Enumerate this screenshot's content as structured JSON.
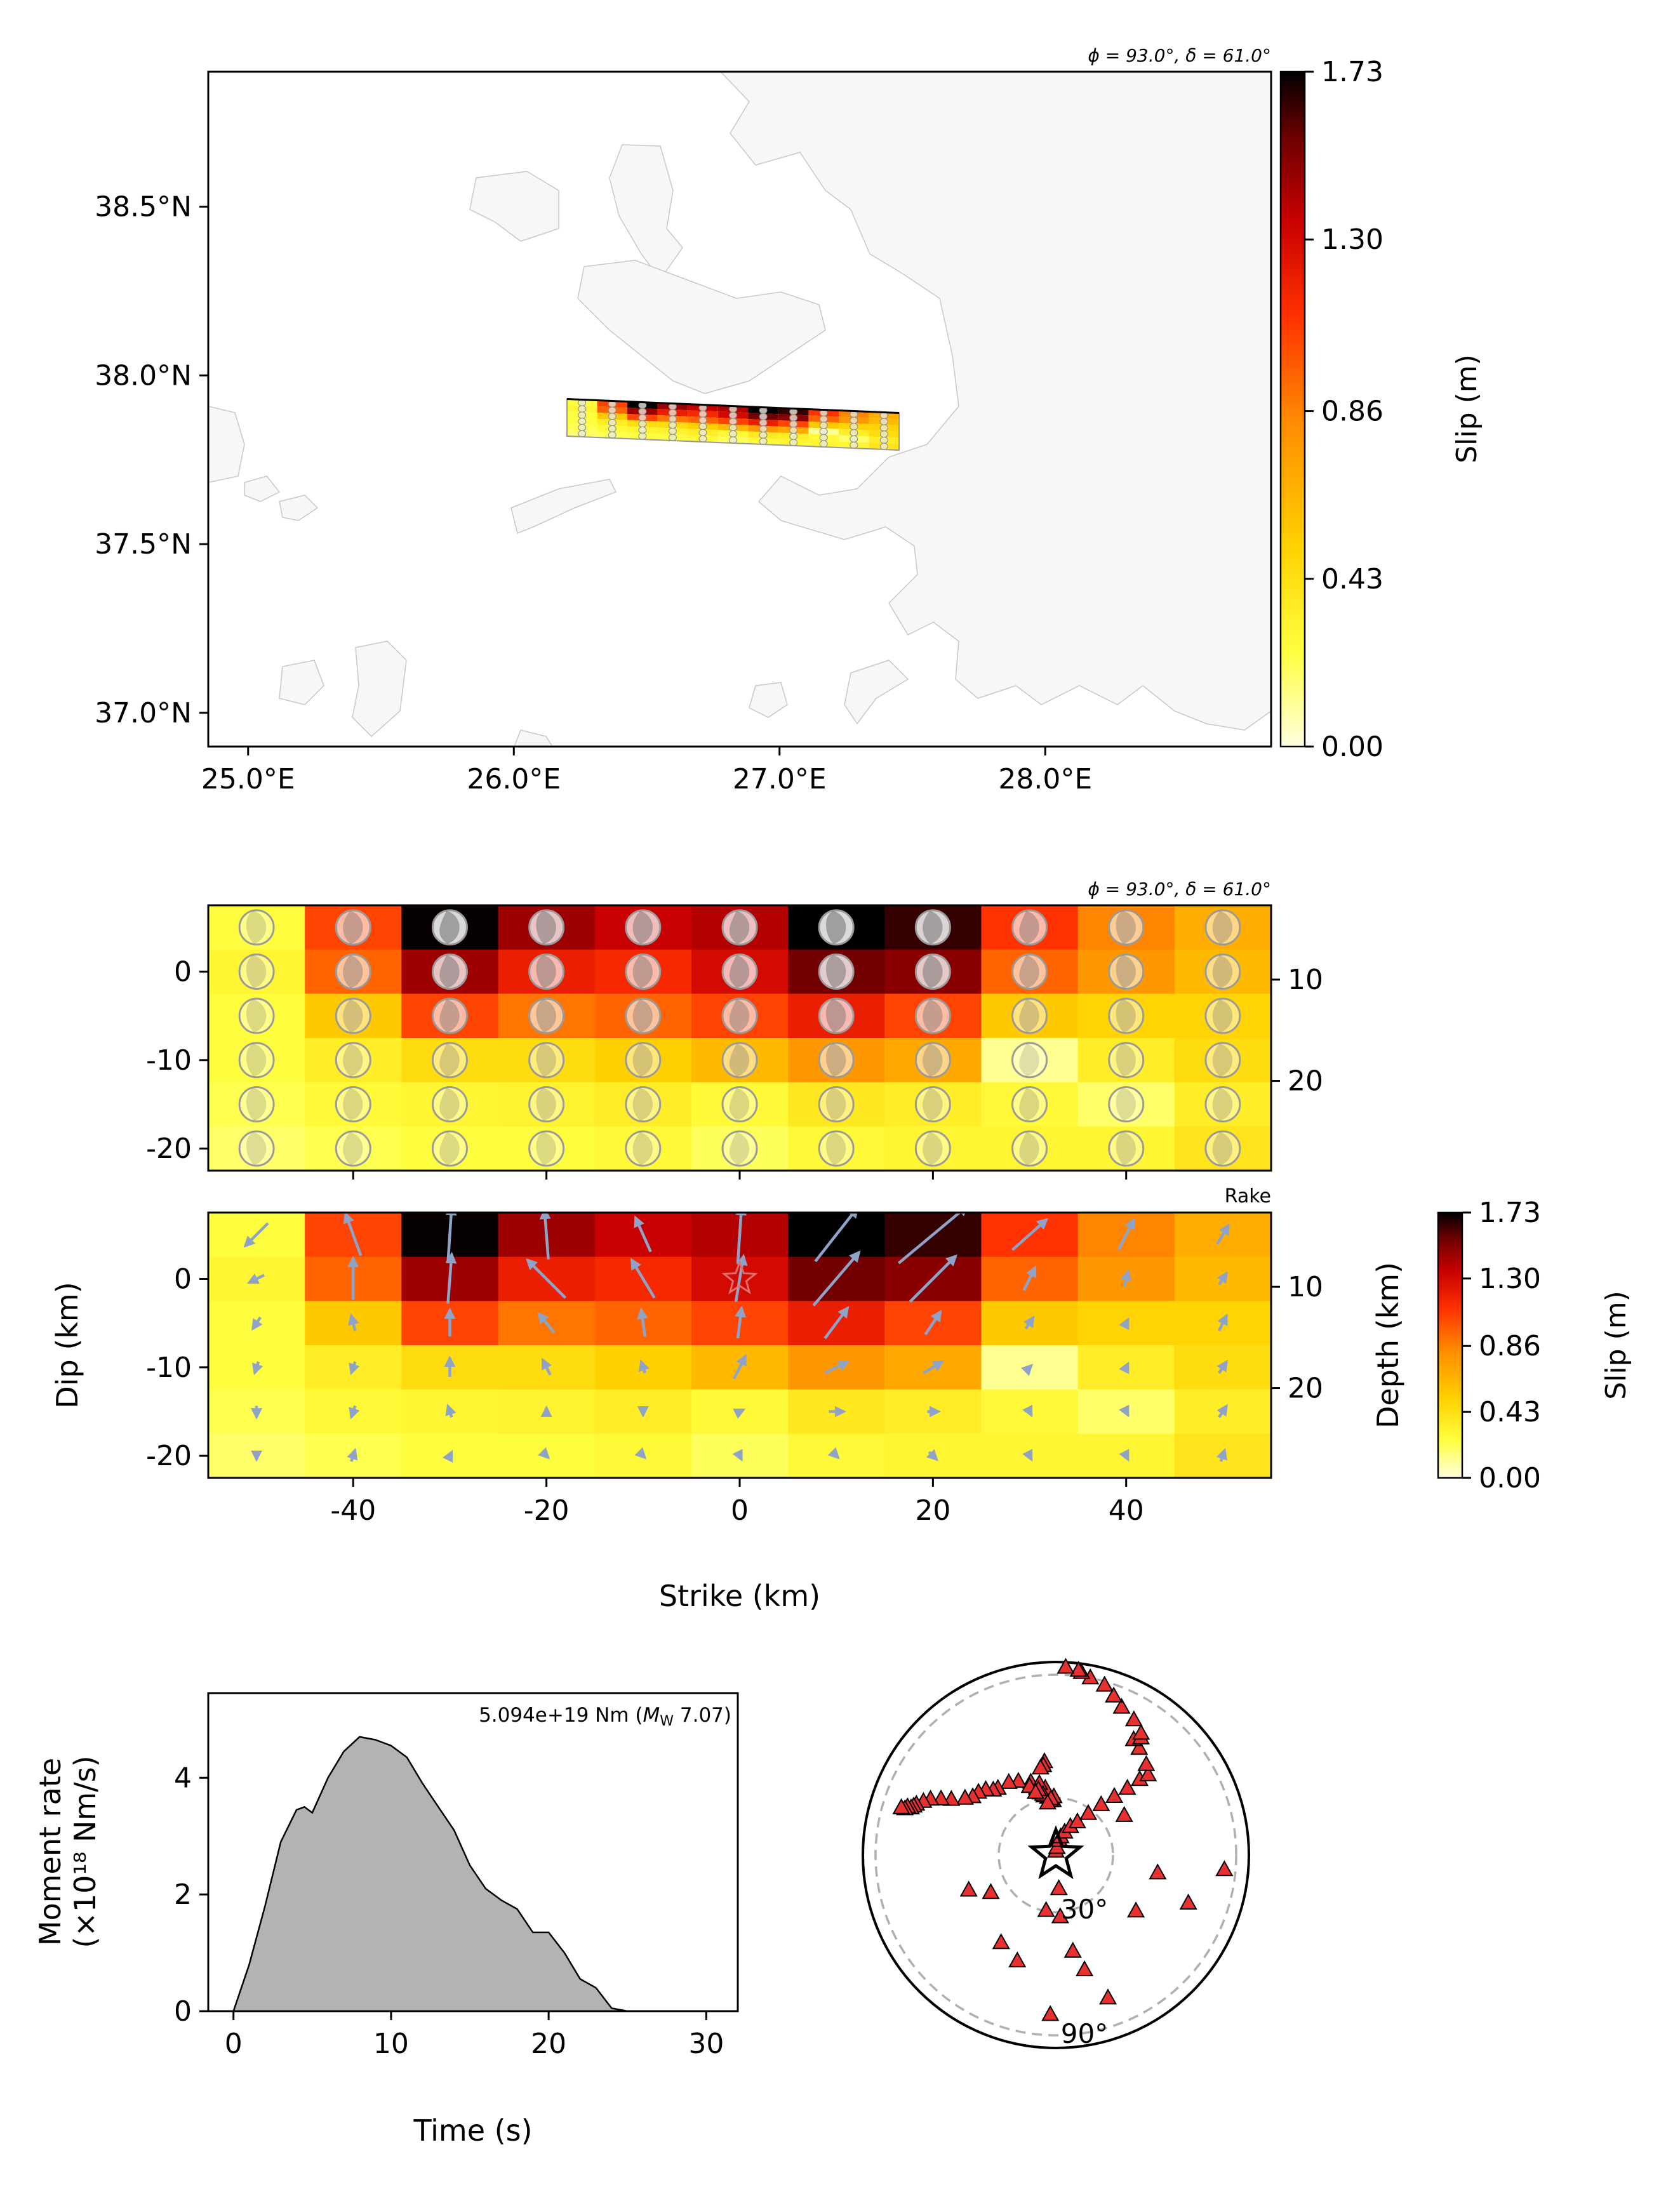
{
  "colors": {
    "slip_scale": [
      "#ffffe0",
      "#ffff40",
      "#ffd000",
      "#ff8c00",
      "#ff3000",
      "#c80000",
      "#700000",
      "#000000"
    ],
    "land": "#f7f7f7",
    "coast": "#c8c8c8",
    "arrow": "#8fa3c8",
    "station": "#e83030",
    "moment_fill": "#b3b3b3",
    "ring": "#b0b0b0"
  },
  "chart_data": [
    {
      "type": "map",
      "annotation": "ϕ = 93.0°,  δ = 61.0°",
      "lon_ticks": [
        25.0,
        26.0,
        27.0,
        28.0
      ],
      "lon_tick_labels": [
        "25.0°E",
        "26.0°E",
        "27.0°E",
        "28.0°E"
      ],
      "lat_ticks": [
        37.0,
        37.5,
        38.0,
        38.5
      ],
      "lat_tick_labels": [
        "37.0°N",
        "37.5°N",
        "38.0°N",
        "38.5°N"
      ],
      "xlim": [
        24.85,
        28.85
      ],
      "ylim": [
        36.9,
        38.9
      ],
      "fault_trace": {
        "lon_start": 26.2,
        "lon_end": 27.45,
        "lat_top": 37.93,
        "lat_bottom": 37.82
      },
      "colorbar": {
        "label": "Slip (m)",
        "ticks": [
          0.0,
          0.43,
          0.86,
          1.3,
          1.73
        ],
        "tick_labels": [
          "0.00",
          "0.43",
          "0.86",
          "1.30",
          "1.73"
        ]
      }
    },
    {
      "type": "heatmap",
      "annotation": "ϕ = 93.0°,  δ = 61.0°",
      "x_edges": [
        -55,
        -45,
        -35,
        -25,
        -15,
        -5,
        5,
        15,
        25,
        35,
        45,
        55
      ],
      "y_edges": [
        7.5,
        2.5,
        -2.5,
        -7.5,
        -12.5,
        -17.5,
        -22.5
      ],
      "x_ticks": [
        -40,
        -20,
        0,
        20,
        40
      ],
      "y_ticks": [
        0,
        -10,
        -20
      ],
      "y_tick_labels": [
        "0",
        "-10",
        "-20"
      ],
      "depth_ticks": [
        10,
        20
      ],
      "depth_tick_dip": [
        -0.9,
        -12.35
      ],
      "slip": [
        [
          0.25,
          1.05,
          1.72,
          1.45,
          1.35,
          1.4,
          1.73,
          1.65,
          1.1,
          0.85,
          0.68
        ],
        [
          0.3,
          0.95,
          1.45,
          1.2,
          1.15,
          1.3,
          1.55,
          1.5,
          0.95,
          0.78,
          0.62
        ],
        [
          0.25,
          0.55,
          1.05,
          0.9,
          0.95,
          1.05,
          1.2,
          1.05,
          0.55,
          0.5,
          0.5
        ],
        [
          0.25,
          0.35,
          0.45,
          0.45,
          0.52,
          0.62,
          0.78,
          0.7,
          0.12,
          0.35,
          0.45
        ],
        [
          0.22,
          0.28,
          0.3,
          0.32,
          0.35,
          0.28,
          0.38,
          0.35,
          0.28,
          0.18,
          0.35
        ],
        [
          0.18,
          0.22,
          0.25,
          0.25,
          0.28,
          0.2,
          0.28,
          0.3,
          0.3,
          0.3,
          0.4
        ]
      ],
      "colorbar": {
        "label": "Slip (m)",
        "ticks": [
          0.0,
          0.43,
          0.86,
          1.3,
          1.73
        ],
        "tick_labels": [
          "0.00",
          "0.43",
          "0.86",
          "1.30",
          "1.73"
        ]
      }
    },
    {
      "type": "heatmap",
      "corner_label": "Rake",
      "xlabel": "Strike (km)",
      "ylabel": "Dip (km)",
      "y2label": "Depth (km)",
      "hypocenter": {
        "x": 0,
        "y": 0
      },
      "rake_vectors": [
        [
          [
            -0.6,
            0.6
          ],
          [
            -0.4,
            -1.1
          ],
          [
            0.1,
            -1.5
          ],
          [
            -0.1,
            -1.3
          ],
          [
            -0.4,
            -0.9
          ],
          [
            0.1,
            -1.5
          ],
          [
            1.1,
            -1.4
          ],
          [
            1.8,
            -1.5
          ],
          [
            0.9,
            -0.8
          ],
          [
            0.4,
            -0.8
          ],
          [
            0.3,
            -0.5
          ]
        ],
        [
          [
            -0.4,
            0.2
          ],
          [
            0.0,
            -1.1
          ],
          [
            0.1,
            -1.3
          ],
          [
            -1.0,
            -1.0
          ],
          [
            -0.6,
            -1.0
          ],
          [
            0.2,
            -1.2
          ],
          [
            1.2,
            -1.4
          ],
          [
            1.2,
            -1.2
          ],
          [
            0.3,
            -0.6
          ],
          [
            0.1,
            -0.4
          ],
          [
            0.2,
            -0.3
          ]
        ],
        [
          [
            -0.2,
            0.3
          ],
          [
            -0.1,
            -0.4
          ],
          [
            0.0,
            -0.7
          ],
          [
            -0.4,
            -0.5
          ],
          [
            -0.1,
            -0.7
          ],
          [
            0.1,
            -0.8
          ],
          [
            0.6,
            -0.8
          ],
          [
            0.4,
            -0.6
          ],
          [
            0.2,
            -0.3
          ],
          [
            0.1,
            -0.2
          ],
          [
            0.2,
            -0.4
          ]
        ],
        [
          [
            -0.1,
            0.3
          ],
          [
            -0.1,
            0.3
          ],
          [
            0.0,
            -0.5
          ],
          [
            -0.2,
            -0.4
          ],
          [
            -0.1,
            -0.3
          ],
          [
            0.3,
            -0.6
          ],
          [
            0.6,
            -0.3
          ],
          [
            0.5,
            -0.3
          ],
          [
            0.1,
            -0.1
          ],
          [
            0.1,
            -0.2
          ],
          [
            0.2,
            -0.3
          ]
        ],
        [
          [
            0.0,
            0.3
          ],
          [
            -0.1,
            0.3
          ],
          [
            -0.1,
            -0.3
          ],
          [
            0.0,
            -0.2
          ],
          [
            0.0,
            0.2
          ],
          [
            0.2,
            -0.1
          ],
          [
            0.4,
            0.0
          ],
          [
            0.3,
            0.0
          ],
          [
            0.1,
            0.2
          ],
          [
            0.1,
            0.2
          ],
          [
            0.2,
            -0.3
          ]
        ],
        [
          [
            0.0,
            0.2
          ],
          [
            0.1,
            -0.3
          ],
          [
            0.1,
            -0.2
          ],
          [
            0.1,
            0.1
          ],
          [
            0.1,
            0.1
          ],
          [
            0.1,
            0.2
          ],
          [
            0.1,
            0.1
          ],
          [
            0.2,
            0.2
          ],
          [
            0.1,
            0.2
          ],
          [
            0.1,
            0.2
          ],
          [
            0.1,
            -0.3
          ]
        ]
      ]
    },
    {
      "type": "area",
      "annotation": "5.094e+19 Nm (M_W 7.07)",
      "annotation_main": "5.094e+19 Nm (",
      "annotation_m": "M",
      "annotation_w": "W",
      "annotation_tail": " 7.07)",
      "xlabel": "Time (s)",
      "ylabel_line1": "Moment rate",
      "ylabel_line2": "(×10¹⁸ Nm/s)",
      "xlim": [
        -1.6,
        32
      ],
      "ylim": [
        0,
        5.45
      ],
      "x_ticks": [
        0,
        10,
        20,
        30
      ],
      "y_ticks": [
        0,
        2,
        4
      ],
      "t": [
        0,
        1,
        2,
        3,
        4,
        4.5,
        5,
        6,
        7,
        8,
        9,
        10,
        11,
        12,
        13,
        14,
        15,
        16,
        17,
        18,
        19,
        20,
        21,
        22,
        23,
        24,
        25,
        26,
        27,
        28,
        29,
        30,
        31
      ],
      "moment_rate": [
        0,
        0.8,
        1.8,
        2.9,
        3.45,
        3.5,
        3.4,
        4.0,
        4.45,
        4.7,
        4.65,
        4.55,
        4.35,
        3.9,
        3.5,
        3.1,
        2.5,
        2.1,
        1.9,
        1.75,
        1.35,
        1.35,
        1.0,
        0.55,
        0.4,
        0.05,
        0,
        0,
        0,
        0,
        0,
        0,
        0
      ]
    },
    {
      "type": "scatter",
      "projection": "azimuthal",
      "ring_labels": [
        "30°",
        "90°"
      ],
      "ring_radius_fraction": [
        0.3,
        0.95
      ],
      "stations": [
        [
          -3,
          29
        ],
        [
          -8,
          31
        ],
        [
          -11,
          32
        ],
        [
          -14,
          34
        ],
        [
          -16,
          37
        ],
        [
          -19,
          41
        ],
        [
          -27,
          44
        ],
        [
          -33,
          46
        ],
        [
          -41,
          47
        ],
        [
          -44,
          48
        ],
        [
          -47,
          51
        ],
        [
          -51,
          53
        ],
        [
          -55,
          54
        ],
        [
          -58,
          57
        ],
        [
          -62,
          63
        ],
        [
          -64,
          68
        ],
        [
          -66,
          73
        ],
        [
          -68,
          76
        ],
        [
          -70,
          79
        ],
        [
          -71,
          80
        ],
        [
          -72,
          81
        ],
        [
          -72,
          83
        ],
        [
          -73,
          84
        ],
        [
          -73,
          86
        ],
        [
          -7,
          50
        ],
        [
          -8,
          48
        ],
        [
          -10,
          47
        ],
        [
          -2,
          31
        ],
        [
          -6,
          29
        ],
        [
          -9,
          36
        ],
        [
          -13,
          39
        ],
        [
          -12,
          33
        ],
        [
          -5,
          30
        ],
        [
          -9,
          28
        ],
        [
          -15,
          36
        ],
        [
          -21,
          39
        ],
        [
          -18,
          35
        ],
        [
          0,
          2
        ],
        [
          8,
          4
        ],
        [
          13,
          8
        ],
        [
          15,
          10
        ],
        [
          21,
          13
        ],
        [
          27,
          17
        ],
        [
          33,
          21
        ],
        [
          38,
          28
        ],
        [
          42,
          36
        ],
        [
          45,
          44
        ],
        [
          47,
          52
        ],
        [
          48,
          60
        ],
        [
          49,
          65
        ],
        [
          45,
          68
        ],
        [
          38,
          72
        ],
        [
          34,
          74
        ],
        [
          36,
          77
        ],
        [
          35,
          79
        ],
        [
          30,
          83
        ],
        [
          24,
          86
        ],
        [
          20,
          90
        ],
        [
          16,
          94
        ],
        [
          11,
          96
        ],
        [
          8,
          98
        ],
        [
          7,
          99
        ],
        [
          3,
          100
        ],
        [
          176,
          33
        ],
        [
          170,
          52
        ],
        [
          166,
          63
        ],
        [
          160,
          81
        ],
        [
          175,
          18
        ],
        [
          -160,
          60
        ],
        [
          -148,
          55
        ],
        [
          -120,
          40
        ],
        [
          -112,
          50
        ],
        [
          125,
          52
        ],
        [
          110,
          75
        ],
        [
          100,
          55
        ],
        [
          95,
          90
        ],
        [
          60,
          42
        ],
        [
          -170,
          30
        ],
        [
          -178,
          85
        ]
      ]
    }
  ]
}
